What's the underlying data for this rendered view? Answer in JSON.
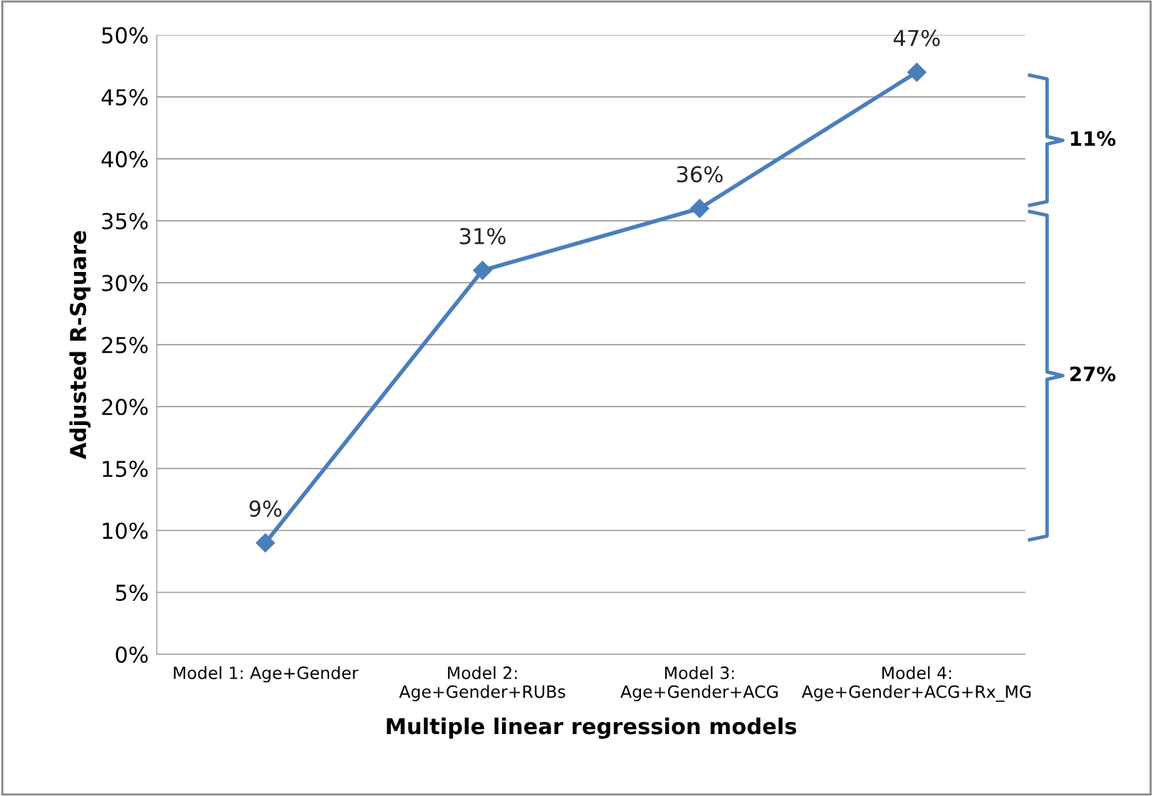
{
  "chart_data": {
    "type": "line",
    "xlabel": "Multiple linear regression models",
    "ylabel": "Adjusted R-Square",
    "categories": [
      "Model 1: Age+Gender",
      "Model 2:\nAge+Gender+RUBs",
      "Model 3:\nAge+Gender+ACG",
      "Model 4:\nAge+Gender+ACG+Rx_MG"
    ],
    "series": [
      {
        "color": "#4a7ebb",
        "values": [
          9,
          31,
          36,
          47
        ],
        "value_labels": [
          "9%",
          "31%",
          "36%",
          "47%"
        ]
      }
    ],
    "ylim": [
      0,
      50
    ],
    "yticks": [
      {
        "value": 0,
        "label": "0%"
      },
      {
        "value": 5,
        "label": "5%"
      },
      {
        "value": 10,
        "label": "10%"
      },
      {
        "value": 15,
        "label": "15%"
      },
      {
        "value": 20,
        "label": "20%"
      },
      {
        "value": 25,
        "label": "25%"
      },
      {
        "value": 30,
        "label": "30%"
      },
      {
        "value": 35,
        "label": "35%"
      },
      {
        "value": 40,
        "label": "40%"
      },
      {
        "value": 45,
        "label": "45%"
      },
      {
        "value": 50,
        "label": "50%"
      }
    ],
    "annotations": [
      "11%",
      "27%"
    ],
    "grid": "y",
    "marker": "diamond",
    "line_style": "solid",
    "legend": false
  }
}
